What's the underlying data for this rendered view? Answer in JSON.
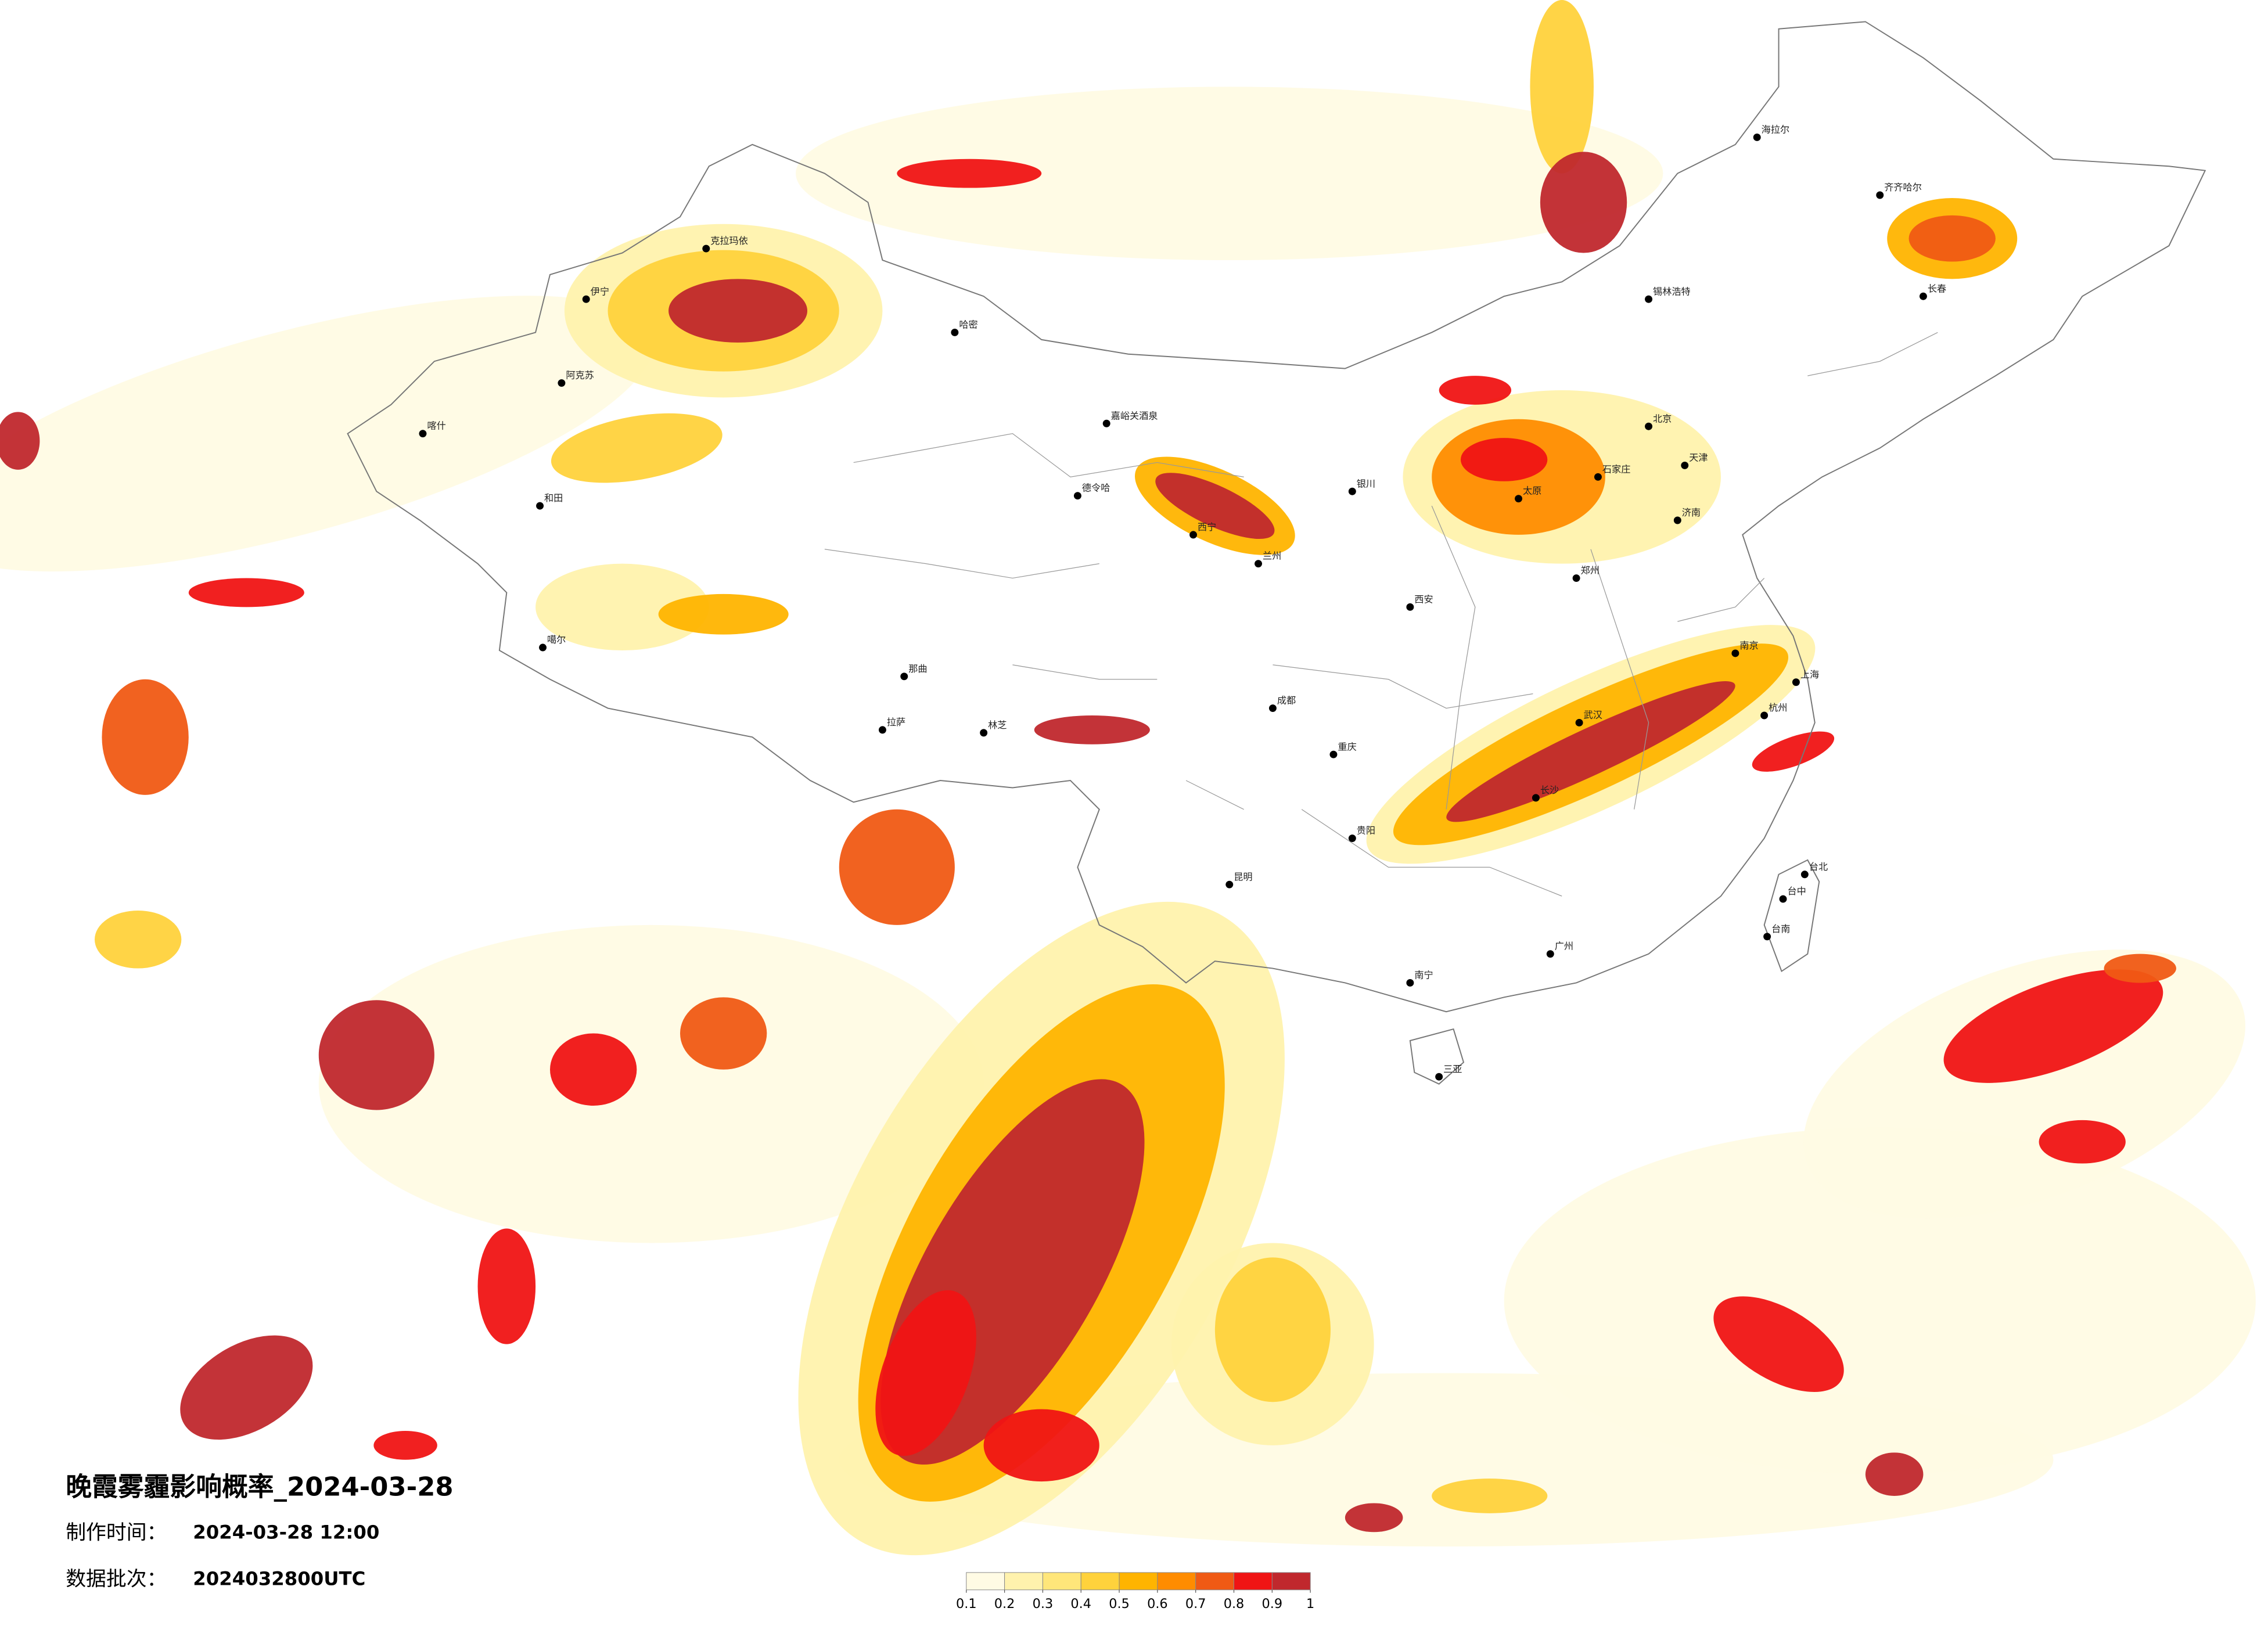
{
  "title": "晚霞雾霾影响概率_2024-03-28",
  "info": [
    {
      "label": "制作时间：",
      "value": "2024-03-28 12:00"
    },
    {
      "label": "数据批次：",
      "value": "2024032800UTC"
    }
  ],
  "legend": {
    "colors": [
      "#fffbe4",
      "#fff2ad",
      "#ffe67a",
      "#ffd23c",
      "#ffb400",
      "#ff8c00",
      "#f05a14",
      "#f01414",
      "#c0282d"
    ],
    "ticks": [
      0.1,
      0.2,
      0.3,
      0.4,
      0.5,
      0.6,
      0.7,
      0.8,
      0.9,
      1
    ]
  },
  "cities": [
    "海拉尔",
    "齐齐哈尔",
    "长春",
    "锡林浩特",
    "克拉玛依",
    "伊宁",
    "阿克苏",
    "喀什",
    "和田",
    "哈密",
    "德令哈",
    "嘉峪关酒泉",
    "拉萨",
    "林芝",
    "那曲",
    "噶尔",
    "北京",
    "天津",
    "石家庄",
    "太原",
    "郑州",
    "济南",
    "南京",
    "上海",
    "杭州",
    "武汉",
    "长沙",
    "广州",
    "南宁",
    "贵阳",
    "昆明",
    "成都",
    "重庆",
    "西安",
    "兰州",
    "西宁",
    "银川",
    "台北",
    "台中",
    "台南",
    "三亚"
  ]
}
